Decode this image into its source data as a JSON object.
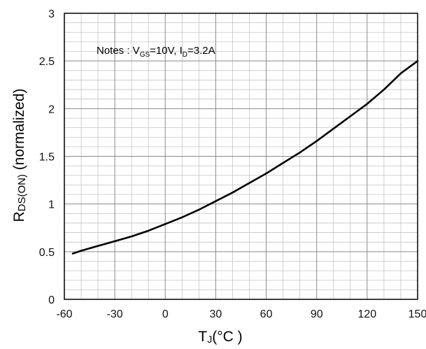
{
  "chart_data": {
    "type": "line",
    "xlim": [
      -60,
      150
    ],
    "ylim": [
      0,
      3
    ],
    "x_ticks": [
      "-60",
      "-30",
      "0",
      "30",
      "60",
      "90",
      "120",
      "150"
    ],
    "y_ticks": [
      "0",
      "0.5",
      "1",
      "1.5",
      "2",
      "2.5",
      "3"
    ],
    "x_minor_step": 10,
    "y_minor_step": 0.1,
    "grid": true,
    "xlabel": {
      "main": "T",
      "sub": "J",
      "rest": "(°C )"
    },
    "ylabel": {
      "main": "R",
      "sub": "DS(ON)",
      "rest": " (normalized)"
    },
    "annotation": {
      "prefix": "Notes : V",
      "sub1": "GS",
      "mid": "=10V, I",
      "sub2": "D",
      "suffix": "=3.2A"
    },
    "series": [
      {
        "color": "#000000",
        "x": [
          -55,
          -50,
          -40,
          -30,
          -20,
          -10,
          0,
          10,
          20,
          30,
          40,
          50,
          60,
          70,
          80,
          90,
          100,
          110,
          120,
          130,
          140,
          150
        ],
        "y": [
          0.48,
          0.51,
          0.56,
          0.61,
          0.66,
          0.72,
          0.79,
          0.86,
          0.94,
          1.03,
          1.12,
          1.22,
          1.32,
          1.43,
          1.54,
          1.66,
          1.79,
          1.92,
          2.05,
          2.2,
          2.37,
          2.5
        ]
      }
    ]
  }
}
